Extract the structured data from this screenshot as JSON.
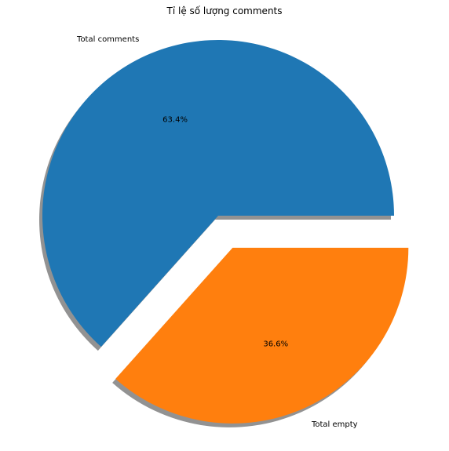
{
  "chart_data": {
    "type": "pie",
    "title": "Tỉ lệ số lượng comments",
    "slices": [
      {
        "label": "Total comments",
        "value": 63.4,
        "pct_label": "63.4%",
        "color": "#1f77b4",
        "exploded": false
      },
      {
        "label": "Total empty",
        "value": 36.6,
        "pct_label": "36.6%",
        "color": "#ff7f0e",
        "exploded": true
      }
    ],
    "shadow": true,
    "start_angle_deg": 0,
    "direction": "counterclockwise"
  }
}
